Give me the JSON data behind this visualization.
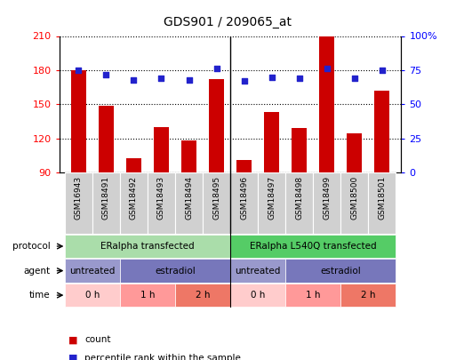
{
  "title": "GDS901 / 209065_at",
  "samples": [
    "GSM16943",
    "GSM18491",
    "GSM18492",
    "GSM18493",
    "GSM18494",
    "GSM18495",
    "GSM18496",
    "GSM18497",
    "GSM18498",
    "GSM18499",
    "GSM18500",
    "GSM18501"
  ],
  "counts": [
    180,
    149,
    103,
    130,
    118,
    172,
    101,
    143,
    129,
    210,
    125,
    162
  ],
  "percentile_ranks": [
    75,
    72,
    68,
    69,
    68,
    76,
    67,
    70,
    69,
    76,
    69,
    75
  ],
  "ylim_left": [
    90,
    210
  ],
  "ylim_right": [
    0,
    100
  ],
  "yticks_left": [
    90,
    120,
    150,
    180,
    210
  ],
  "yticks_right": [
    0,
    25,
    50,
    75,
    100
  ],
  "bar_color": "#cc0000",
  "dot_color": "#2222cc",
  "sample_box_color": "#d0d0d0",
  "protocols": [
    {
      "label": "ERalpha transfected",
      "start": 0,
      "end": 6,
      "color": "#aaddaa"
    },
    {
      "label": "ERalpha L540Q transfected",
      "start": 6,
      "end": 12,
      "color": "#55cc66"
    }
  ],
  "agents": [
    {
      "label": "untreated",
      "start": 0,
      "end": 2,
      "color": "#9999cc"
    },
    {
      "label": "estradiol",
      "start": 2,
      "end": 6,
      "color": "#7777bb"
    },
    {
      "label": "untreated",
      "start": 6,
      "end": 8,
      "color": "#9999cc"
    },
    {
      "label": "estradiol",
      "start": 8,
      "end": 12,
      "color": "#7777bb"
    }
  ],
  "times": [
    {
      "label": "0 h",
      "start": 0,
      "end": 2,
      "color": "#ffcccc"
    },
    {
      "label": "1 h",
      "start": 2,
      "end": 4,
      "color": "#ff9999"
    },
    {
      "label": "2 h",
      "start": 4,
      "end": 6,
      "color": "#ee7766"
    },
    {
      "label": "0 h",
      "start": 6,
      "end": 8,
      "color": "#ffcccc"
    },
    {
      "label": "1 h",
      "start": 8,
      "end": 10,
      "color": "#ff9999"
    },
    {
      "label": "2 h",
      "start": 10,
      "end": 12,
      "color": "#ee7766"
    }
  ],
  "row_labels": [
    "protocol",
    "agent",
    "time"
  ],
  "legend_items": [
    {
      "color": "#cc0000",
      "label": "count"
    },
    {
      "color": "#2222cc",
      "label": "percentile rank within the sample"
    }
  ],
  "group_divider": 5.5
}
